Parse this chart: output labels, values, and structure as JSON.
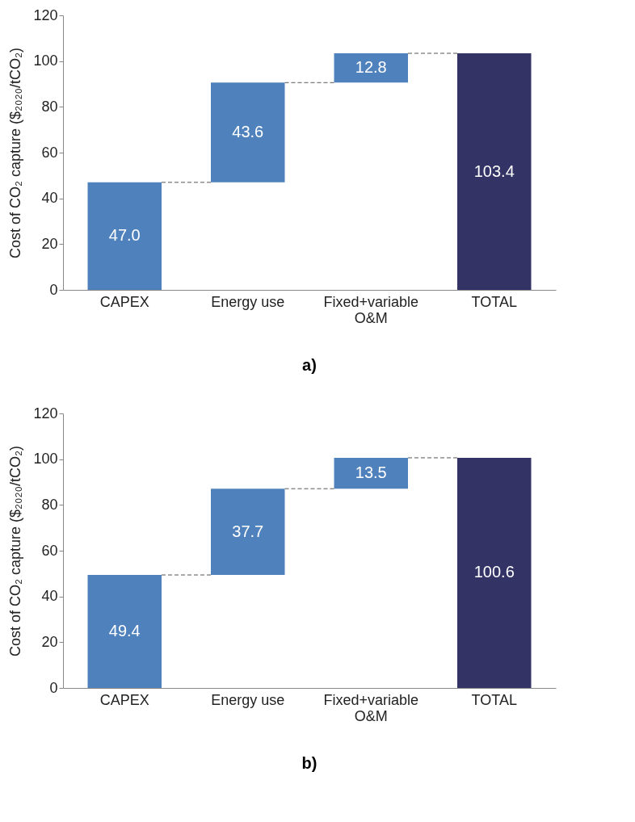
{
  "chart_data": [
    {
      "type": "bar",
      "title": "a)",
      "ylabel": "Cost of CO₂ capture ($₂₀₂₀/tCO₂)",
      "categories": [
        "CAPEX",
        "Energy use",
        "Fixed+variable O&M",
        "TOTAL"
      ],
      "values": [
        47.0,
        43.6,
        12.8,
        103.4
      ],
      "base": [
        0,
        47.0,
        90.6,
        0
      ],
      "colors": [
        "#4f81bd",
        "#4f81bd",
        "#4f81bd",
        "#333366"
      ],
      "ylim": [
        0,
        120
      ],
      "yticks": [
        0,
        20,
        40,
        60,
        80,
        100,
        120
      ],
      "value_labels": [
        "47.0",
        "43.6",
        "12.8",
        "103.4"
      ]
    },
    {
      "type": "bar",
      "title": "b)",
      "ylabel": "Cost of CO₂ capture ($₂₀₂₀/tCO₂)",
      "categories": [
        "CAPEX",
        "Energy use",
        "Fixed+variable O&M",
        "TOTAL"
      ],
      "values": [
        49.4,
        37.7,
        13.5,
        100.6
      ],
      "base": [
        0,
        49.4,
        87.1,
        0
      ],
      "colors": [
        "#4f81bd",
        "#4f81bd",
        "#4f81bd",
        "#333366"
      ],
      "ylim": [
        0,
        120
      ],
      "yticks": [
        0,
        20,
        40,
        60,
        80,
        100,
        120
      ],
      "value_labels": [
        "49.4",
        "37.7",
        "13.5",
        "100.6"
      ]
    }
  ]
}
